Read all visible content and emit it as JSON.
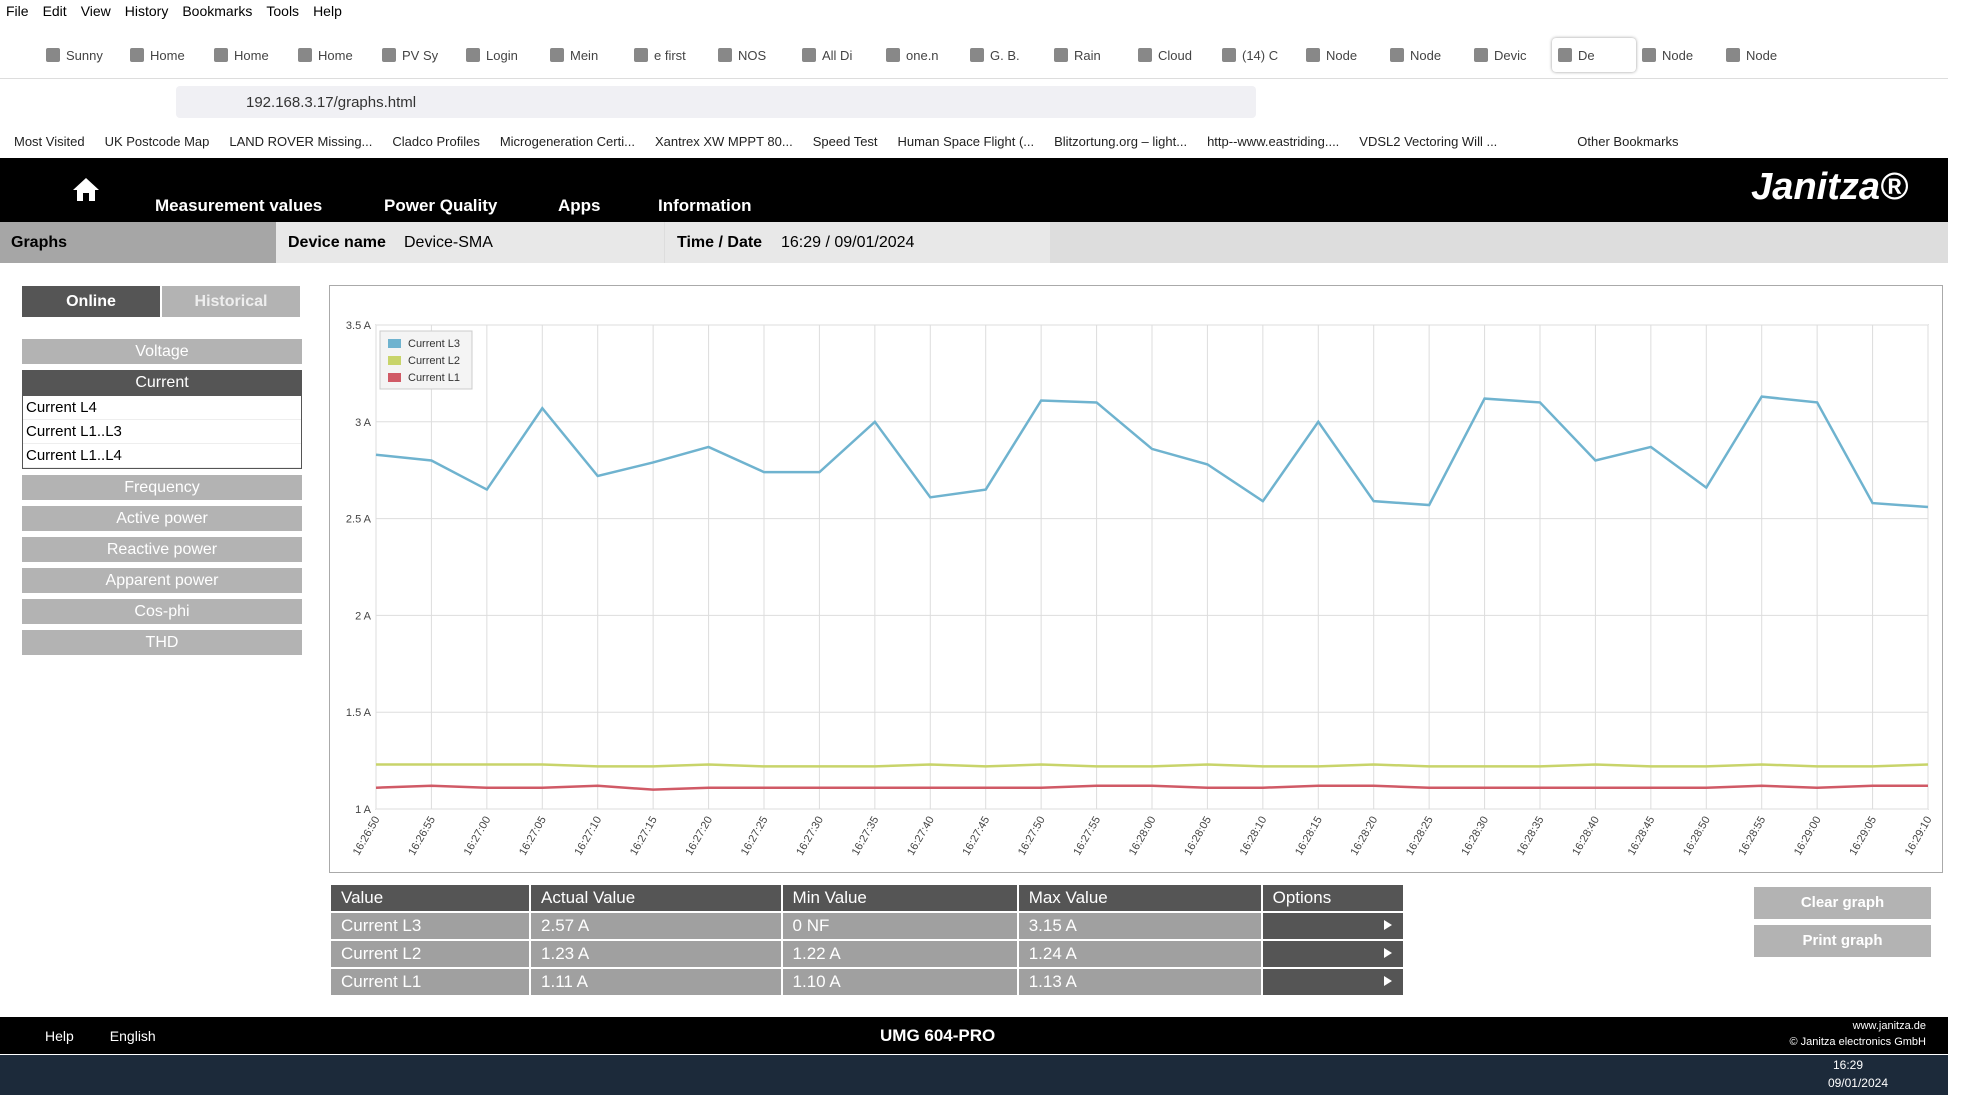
{
  "browser": {
    "menu": [
      "File",
      "Edit",
      "View",
      "History",
      "Bookmarks",
      "Tools",
      "Help"
    ],
    "tabs": [
      "Sunny",
      "Home",
      "Home",
      "Home",
      "PV Sy",
      "Login",
      "Mein",
      "e first",
      "NOS",
      "All Di",
      "one.n",
      "G. B.",
      "Rain",
      "Cloud",
      "(14) C",
      "Node",
      "Node",
      "Devic",
      "De",
      "Node",
      "Node"
    ],
    "url": "192.168.3.17/graphs.html",
    "bookmarks": [
      "Most Visited",
      "UK Postcode Map",
      "LAND ROVER Missing...",
      "Cladco Profiles",
      "Microgeneration Certi...",
      "Xantrex XW MPPT 80...",
      "Speed Test",
      "Human Space Flight (...",
      "Blitzortung.org – light...",
      "http--www.eastriding....",
      "VDSL2 Vectoring  Will ...",
      "Other Bookmarks"
    ]
  },
  "app": {
    "nav": [
      "Measurement values",
      "Power Quality",
      "Apps",
      "Information"
    ],
    "logo": "Janitza®",
    "section": "Graphs",
    "device_label": "Device name",
    "device": "Device-SMA",
    "time_label": "Time / Date",
    "time": "16:29 / 09/01/2024",
    "modes": [
      "Online",
      "Historical"
    ],
    "menu": [
      "Voltage",
      "Current",
      "Frequency",
      "Active power",
      "Reactive power",
      "Apparent power",
      "Cos-phi",
      "THD"
    ],
    "submenu": [
      "Current L4",
      "Current L1..L3",
      "Current L1..L4"
    ],
    "table": {
      "header": [
        "Value",
        "Actual Value",
        "Min Value",
        "Max Value",
        "Options"
      ],
      "rows": [
        [
          "Current L3",
          "2.57 A",
          "0 NF",
          "3.15 A"
        ],
        [
          "Current L2",
          "1.23 A",
          "1.22 A",
          "1.24 A"
        ],
        [
          "Current L1",
          "1.11 A",
          "1.10 A",
          "1.13 A"
        ]
      ]
    },
    "buttons": [
      "Clear graph",
      "Print graph"
    ],
    "footer": {
      "help": "Help",
      "language": "English",
      "model": "UMG 604-PRO",
      "site": "www.janitza.de",
      "copyright": "© Janitza electronics GmbH"
    }
  },
  "taskbar": {
    "time": "16:29",
    "date": "09/01/2024"
  },
  "chart_data": {
    "type": "line",
    "categories": [
      "16:26:50",
      "16:26:55",
      "16:27:00",
      "16:27:05",
      "16:27:10",
      "16:27:15",
      "16:27:20",
      "16:27:25",
      "16:27:30",
      "16:27:35",
      "16:27:40",
      "16:27:45",
      "16:27:50",
      "16:27:55",
      "16:28:00",
      "16:28:05",
      "16:28:10",
      "16:28:15",
      "16:28:20",
      "16:28:25",
      "16:28:30",
      "16:28:35",
      "16:28:40",
      "16:28:45",
      "16:28:50",
      "16:28:55",
      "16:29:00",
      "16:29:05",
      "16:29:10"
    ],
    "series": [
      {
        "name": "Current L3",
        "color": "#6fb3cf",
        "values": [
          2.83,
          2.8,
          2.65,
          3.07,
          2.72,
          2.79,
          2.87,
          2.74,
          2.74,
          3.0,
          2.61,
          2.65,
          3.11,
          3.1,
          2.86,
          2.78,
          2.59,
          3.0,
          2.59,
          2.57,
          3.12,
          3.1,
          2.8,
          2.87,
          2.66,
          3.13,
          3.1,
          2.58,
          2.56
        ]
      },
      {
        "name": "Current L2",
        "color": "#c8d46a",
        "values": [
          1.23,
          1.23,
          1.23,
          1.23,
          1.22,
          1.22,
          1.23,
          1.22,
          1.22,
          1.22,
          1.23,
          1.22,
          1.23,
          1.22,
          1.22,
          1.23,
          1.22,
          1.22,
          1.23,
          1.22,
          1.22,
          1.22,
          1.23,
          1.22,
          1.22,
          1.23,
          1.22,
          1.22,
          1.23
        ]
      },
      {
        "name": "Current L1",
        "color": "#d05a66",
        "values": [
          1.11,
          1.12,
          1.11,
          1.11,
          1.12,
          1.1,
          1.11,
          1.11,
          1.11,
          1.11,
          1.11,
          1.11,
          1.11,
          1.12,
          1.12,
          1.11,
          1.11,
          1.12,
          1.12,
          1.11,
          1.11,
          1.11,
          1.11,
          1.11,
          1.11,
          1.12,
          1.11,
          1.12,
          1.12
        ]
      }
    ],
    "ylim": [
      1,
      3.5
    ],
    "yticks": [
      {
        "value": 1,
        "label": "1 A"
      },
      {
        "value": 1.5,
        "label": "1.5 A"
      },
      {
        "value": 2,
        "label": "2 A"
      },
      {
        "value": 2.5,
        "label": "2.5 A"
      },
      {
        "value": 3,
        "label": "3 A"
      },
      {
        "value": 3.5,
        "label": "3.5 A"
      }
    ],
    "grid": true,
    "legend": "top-left"
  }
}
